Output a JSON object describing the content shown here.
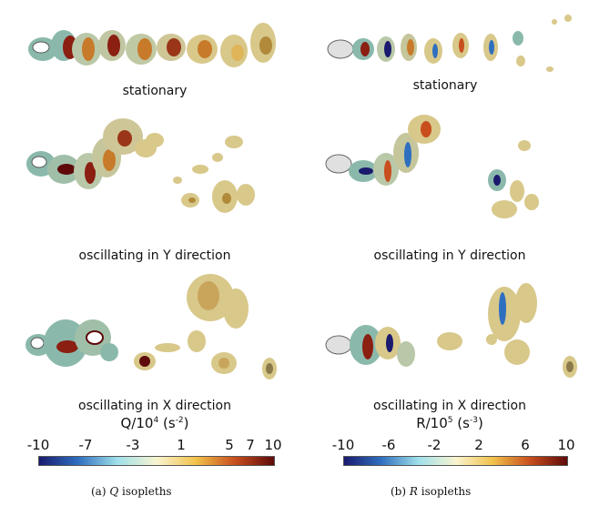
{
  "left": {
    "captions": [
      "stationary",
      "oscillating in Y direction",
      "oscillating in X direction"
    ],
    "colorbar": {
      "label": "Q/10",
      "exponent": "4",
      "unit": "(s",
      "unit_exp": "-2",
      "unit_close": ")",
      "ticks": [
        "-10",
        "-7",
        "-3",
        "1",
        "5",
        "7",
        "10"
      ]
    },
    "subcaption": {
      "prefix": "(a)",
      "var": "Q",
      "suffix": "isopleths"
    }
  },
  "right": {
    "captions": [
      "stationary",
      "oscillating in Y direction",
      "oscillating in X direction"
    ],
    "colorbar": {
      "label": "R/10",
      "exponent": "5",
      "unit": "(s",
      "unit_exp": "-3",
      "unit_close": ")",
      "ticks": [
        "-10",
        "-6",
        "-2",
        "2",
        "6",
        "10"
      ]
    },
    "subcaption": {
      "prefix": "(b)",
      "var": "R",
      "suffix": "isopleths"
    }
  },
  "colors": {
    "isosurface": "#d8c88a",
    "isosurface_teal": "#8ab9ac",
    "core_red": "#8a1f12",
    "core_orange": "#c77a2a",
    "colormap": [
      "#1a1a6e",
      "#2f6fbf",
      "#9fe0ea",
      "#f8f4d0",
      "#f2c24a",
      "#c84e1e",
      "#5e0a0a"
    ]
  }
}
